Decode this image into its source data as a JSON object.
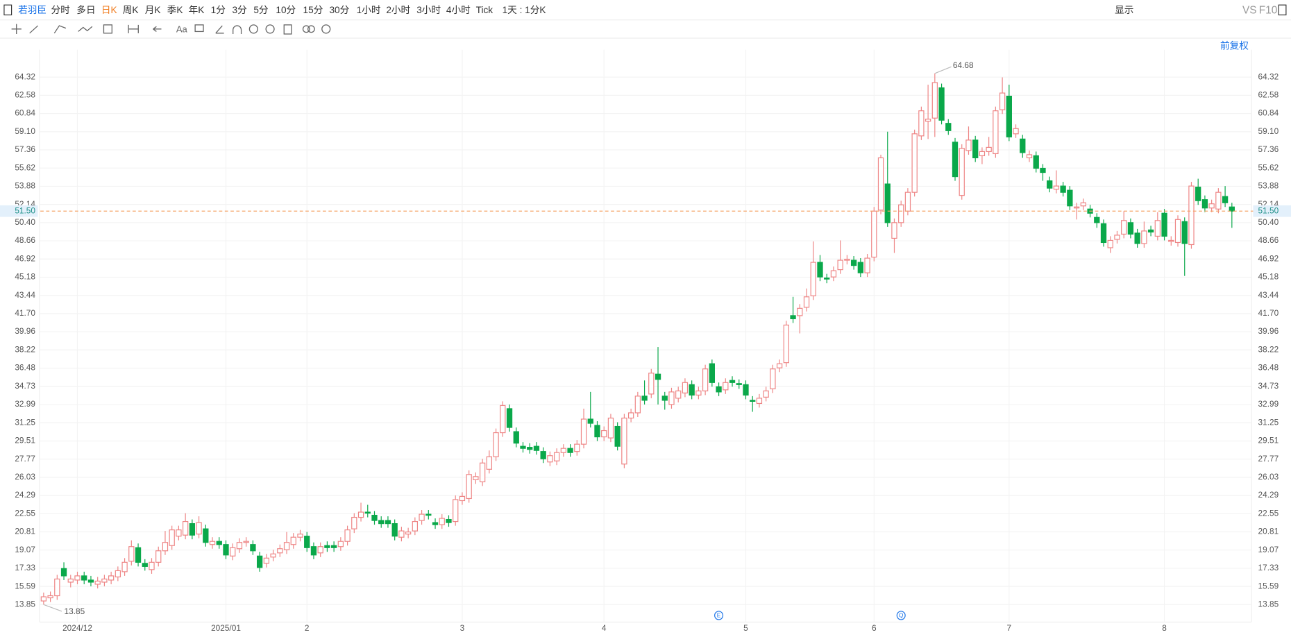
{
  "toolbar": {
    "stock": "若羽臣",
    "periods": [
      "分时",
      "多日",
      "日K",
      "周K",
      "月K",
      "季K",
      "年K",
      "1分",
      "3分",
      "5分",
      "10分",
      "15分",
      "30分",
      "1小时",
      "2小时",
      "3小时",
      "4小时",
      "Tick"
    ],
    "interval": "1天 : 1分K",
    "display": "显示",
    "compare": "VS",
    "f10": "F10",
    "adjust": "前复权"
  },
  "chart_data": {
    "type": "candlestick",
    "categories": [
      null,
      null,
      null,
      null,
      null,
      "2024/12",
      null,
      null,
      null,
      null,
      null,
      null,
      null,
      null,
      null,
      null,
      null,
      null,
      null,
      null,
      null,
      null,
      null,
      null,
      null,
      null,
      null,
      "2025/01",
      null,
      null,
      null,
      null,
      null,
      null,
      null,
      null,
      null,
      null,
      null,
      "2",
      null,
      null,
      null,
      null,
      null,
      null,
      null,
      null,
      null,
      null,
      null,
      null,
      null,
      null,
      null,
      null,
      null,
      null,
      null,
      null,
      null,
      null,
      "3",
      null,
      null,
      null,
      null,
      null,
      null,
      null,
      null,
      null,
      null,
      null,
      null,
      null,
      null,
      null,
      null,
      null,
      null,
      null,
      null,
      "4",
      null,
      null,
      null,
      null,
      null,
      null,
      null,
      null,
      null,
      null,
      null,
      null,
      null,
      null,
      null,
      null,
      null,
      null,
      null,
      null,
      "5",
      null,
      null,
      null,
      null,
      null,
      null,
      null,
      null,
      null,
      null,
      null,
      null,
      null,
      null,
      null,
      null,
      null,
      null,
      "6",
      null,
      null,
      null,
      null,
      null,
      null,
      null,
      null,
      null,
      null,
      null,
      null,
      null,
      null,
      null,
      null,
      null,
      null,
      null,
      "7",
      null,
      null,
      null,
      null,
      null,
      null,
      null,
      null,
      null,
      null,
      null,
      null,
      null,
      null,
      null,
      null,
      null,
      null,
      null,
      null,
      null,
      null,
      "8",
      null,
      null,
      null,
      null,
      null,
      null,
      null,
      null,
      null,
      null
    ],
    "open": [
      14.2,
      14.5,
      14.7,
      17.3,
      16.0,
      16.2,
      16.6,
      16.2,
      15.8,
      16.0,
      16.2,
      16.5,
      17.0,
      18.0,
      19.3,
      17.8,
      17.2,
      17.9,
      19.0,
      19.5,
      20.4,
      20.5,
      21.6,
      20.6,
      21.1,
      19.6,
      19.9,
      19.6,
      18.5,
      19.2,
      19.8,
      19.6,
      18.5,
      17.8,
      18.4,
      18.8,
      19.1,
      19.6,
      20.3,
      20.4,
      19.4,
      18.8,
      19.5,
      19.5,
      19.4,
      19.9,
      21.1,
      22.2,
      22.7,
      22.4,
      21.9,
      21.9,
      21.6,
      20.3,
      20.6,
      20.9,
      21.9,
      22.5,
      21.7,
      21.5,
      22.0,
      21.8,
      23.8,
      24.0,
      25.8,
      25.6,
      26.8,
      28.0,
      30.3,
      32.6,
      30.4,
      29.0,
      28.9,
      29.0,
      28.5,
      27.5,
      27.6,
      28.4,
      28.8,
      28.5,
      29.2,
      31.6,
      31.0,
      29.9,
      29.8,
      30.9,
      27.3,
      31.7,
      32.2,
      33.8,
      34.0,
      35.9,
      33.8,
      33.0,
      33.6,
      34.1,
      34.9,
      33.9,
      34.3,
      36.9,
      34.7,
      34.4,
      35.3,
      35.0,
      34.9,
      33.4,
      33.1,
      33.7,
      34.5,
      36.5,
      37.0,
      41.5,
      41.5,
      42.3,
      43.4,
      46.6,
      45.1,
      45.2,
      45.9,
      46.8,
      46.8,
      46.6,
      45.6,
      47.1,
      51.6,
      54.1,
      48.9,
      50.4,
      51.5,
      53.3,
      58.7,
      60.1,
      60.4,
      63.3,
      59.9,
      58.1,
      53.0,
      57.3,
      58.3,
      56.8,
      57.2,
      57.0,
      61.2,
      62.5,
      58.9,
      58.4,
      56.6,
      56.8,
      55.6,
      54.4,
      53.6,
      53.9,
      53.5,
      51.8,
      52.0,
      51.7,
      50.9,
      50.3,
      48.0,
      48.8,
      49.3,
      50.4,
      49.4,
      48.4,
      49.7,
      49.1,
      51.3,
      48.6,
      48.5,
      50.5,
      48.3,
      53.8,
      52.6,
      51.8,
      51.7,
      52.9,
      51.9
    ],
    "high": [
      15.0,
      15.1,
      16.7,
      17.9,
      16.7,
      17.0,
      17.0,
      16.6,
      16.5,
      16.7,
      17.0,
      17.5,
      18.3,
      20.0,
      19.7,
      18.2,
      18.3,
      19.4,
      20.9,
      21.4,
      21.4,
      22.6,
      22.0,
      22.3,
      21.5,
      20.3,
      20.3,
      20.0,
      19.7,
      20.2,
      20.3,
      20.0,
      18.9,
      18.7,
      19.1,
      19.6,
      20.8,
      20.7,
      21.0,
      20.8,
      19.8,
      19.8,
      19.9,
      19.9,
      20.3,
      21.4,
      22.6,
      23.6,
      23.4,
      22.8,
      22.3,
      22.3,
      22.0,
      21.3,
      21.2,
      22.2,
      22.9,
      22.9,
      22.1,
      22.5,
      22.4,
      24.3,
      24.6,
      26.7,
      26.5,
      27.8,
      28.6,
      30.7,
      33.3,
      33.0,
      30.8,
      29.4,
      29.3,
      29.4,
      28.9,
      28.5,
      28.8,
      29.2,
      29.2,
      29.6,
      32.6,
      34.2,
      31.4,
      30.9,
      32.1,
      31.3,
      32.1,
      32.6,
      34.2,
      35.3,
      36.4,
      38.5,
      34.2,
      34.6,
      34.7,
      35.5,
      35.3,
      34.7,
      36.8,
      37.3,
      35.1,
      35.5,
      35.7,
      35.4,
      35.3,
      33.8,
      34.0,
      34.7,
      36.8,
      37.3,
      41.0,
      43.3,
      42.6,
      44.1,
      48.6,
      47.3,
      45.5,
      46.2,
      48.7,
      47.3,
      47.2,
      47.0,
      47.4,
      51.9,
      56.9,
      59.1,
      50.8,
      52.5,
      53.7,
      59.3,
      61.5,
      63.6,
      64.68,
      63.7,
      60.3,
      58.5,
      57.9,
      59.6,
      58.7,
      57.6,
      58.6,
      61.5,
      64.3,
      63.6,
      59.8,
      58.8,
      57.3,
      57.2,
      56.0,
      54.8,
      55.4,
      54.3,
      53.9,
      52.3,
      52.7,
      52.1,
      51.3,
      50.7,
      49.1,
      49.6,
      51.5,
      50.8,
      49.8,
      50.5,
      50.1,
      51.4,
      51.7,
      49.1,
      51.1,
      50.9,
      54.3,
      54.6,
      53.0,
      52.6,
      53.7,
      53.9,
      52.3
    ],
    "low": [
      13.85,
      14.1,
      14.3,
      16.2,
      15.5,
      15.8,
      15.8,
      15.6,
      15.4,
      15.6,
      15.8,
      16.1,
      16.6,
      17.6,
      17.5,
      17.1,
      16.8,
      17.5,
      18.6,
      19.1,
      20.0,
      20.1,
      20.1,
      20.2,
      19.4,
      19.2,
      19.2,
      18.2,
      18.1,
      18.8,
      19.4,
      18.6,
      17.0,
      17.4,
      18.0,
      18.4,
      18.7,
      19.2,
      19.9,
      18.9,
      18.2,
      18.4,
      18.9,
      18.9,
      19.0,
      19.5,
      20.7,
      21.8,
      22.2,
      21.5,
      21.2,
      21.2,
      20.0,
      19.9,
      20.2,
      20.5,
      21.5,
      22.0,
      21.1,
      21.1,
      21.3,
      21.4,
      23.4,
      23.6,
      25.4,
      25.2,
      26.4,
      27.6,
      29.9,
      30.4,
      28.9,
      28.4,
      28.3,
      28.2,
      27.4,
      27.1,
      27.2,
      28.0,
      28.0,
      28.1,
      28.8,
      30.8,
      29.5,
      29.5,
      29.4,
      28.6,
      26.9,
      31.3,
      31.8,
      33.0,
      33.6,
      33.0,
      32.5,
      32.6,
      33.2,
      33.7,
      33.5,
      33.5,
      33.9,
      34.7,
      33.8,
      34.0,
      34.7,
      34.5,
      33.5,
      32.3,
      32.7,
      33.3,
      34.1,
      36.1,
      36.6,
      40.8,
      39.8,
      41.9,
      43.0,
      44.8,
      44.6,
      44.8,
      45.5,
      46.4,
      45.9,
      45.2,
      45.2,
      46.7,
      51.2,
      50.0,
      47.5,
      50.0,
      51.1,
      52.9,
      58.3,
      58.4,
      58.6,
      59.8,
      58.8,
      54.4,
      52.6,
      56.9,
      56.2,
      56.0,
      56.8,
      56.6,
      60.8,
      58.2,
      58.5,
      56.6,
      56.2,
      55.2,
      54.4,
      53.3,
      53.2,
      52.9,
      51.6,
      50.7,
      51.6,
      50.9,
      49.9,
      48.1,
      47.5,
      48.4,
      48.9,
      48.9,
      48.0,
      48.0,
      49.1,
      48.7,
      48.7,
      48.2,
      48.1,
      45.3,
      47.9,
      52.1,
      51.4,
      51.4,
      51.3,
      51.9,
      49.9
    ],
    "close": [
      14.6,
      14.7,
      16.3,
      16.6,
      16.3,
      16.6,
      16.2,
      16.0,
      16.1,
      16.3,
      16.6,
      17.1,
      17.9,
      19.4,
      17.9,
      17.5,
      17.9,
      19.0,
      19.8,
      21.0,
      21.0,
      21.8,
      20.5,
      21.7,
      19.8,
      19.9,
      19.6,
      18.6,
      19.3,
      19.8,
      19.9,
      19.0,
      17.4,
      18.3,
      18.7,
      19.2,
      19.8,
      20.3,
      20.6,
      19.3,
      18.6,
      19.4,
      19.3,
      19.3,
      19.9,
      21.0,
      22.2,
      22.7,
      22.6,
      21.9,
      21.6,
      21.6,
      20.4,
      20.9,
      20.8,
      21.8,
      22.5,
      22.4,
      21.5,
      22.1,
      21.7,
      23.9,
      24.2,
      26.3,
      26.1,
      27.4,
      28.0,
      30.3,
      32.9,
      30.8,
      29.3,
      28.8,
      28.7,
      28.6,
      27.8,
      28.1,
      28.4,
      28.8,
      28.4,
      29.2,
      31.6,
      31.2,
      29.9,
      30.5,
      31.7,
      29.0,
      31.7,
      32.2,
      33.8,
      33.4,
      36.0,
      35.4,
      33.4,
      34.2,
      34.3,
      35.1,
      33.9,
      34.3,
      36.4,
      35.1,
      34.2,
      35.1,
      35.1,
      34.9,
      33.9,
      33.3,
      33.6,
      34.3,
      36.4,
      36.9,
      40.6,
      41.2,
      42.2,
      43.3,
      46.6,
      45.2,
      45.0,
      45.8,
      46.8,
      46.9,
      46.3,
      45.6,
      47.0,
      51.5,
      56.6,
      50.4,
      50.4,
      52.1,
      53.3,
      58.9,
      61.1,
      60.3,
      63.8,
      60.2,
      59.2,
      54.8,
      57.5,
      58.3,
      56.6,
      57.2,
      57.6,
      61.1,
      62.8,
      58.6,
      59.4,
      57.1,
      56.9,
      55.6,
      55.2,
      53.7,
      53.9,
      53.3,
      52.0,
      51.9,
      52.3,
      51.3,
      50.4,
      48.5,
      48.7,
      49.2,
      50.6,
      49.3,
      48.4,
      49.6,
      49.5,
      50.6,
      49.1,
      48.7,
      50.7,
      48.4,
      53.9,
      52.5,
      51.8,
      52.2,
      53.3,
      52.3,
      51.5
    ],
    "up_color": "#ee8585",
    "down_color": "#0aa84a",
    "ylim": [
      12.18,
      66.94
    ],
    "yticks": [
      13.85,
      15.59,
      17.33,
      19.07,
      20.81,
      22.55,
      24.29,
      26.03,
      27.77,
      29.51,
      31.25,
      32.99,
      34.73,
      36.48,
      38.22,
      39.96,
      {
        "value": 41.7,
        "label": "41.70"
      },
      43.44,
      45.18,
      46.92,
      48.66,
      {
        "value": 50.4,
        "label": "50.40"
      },
      52.14,
      53.88,
      55.62,
      57.36,
      {
        "value": 59.1,
        "label": "59.10"
      },
      60.84,
      62.58,
      64.32
    ],
    "grid": true,
    "current_price": {
      "value": 51.5,
      "label": "51.50"
    },
    "event_markers": [
      "E",
      "Q"
    ]
  }
}
